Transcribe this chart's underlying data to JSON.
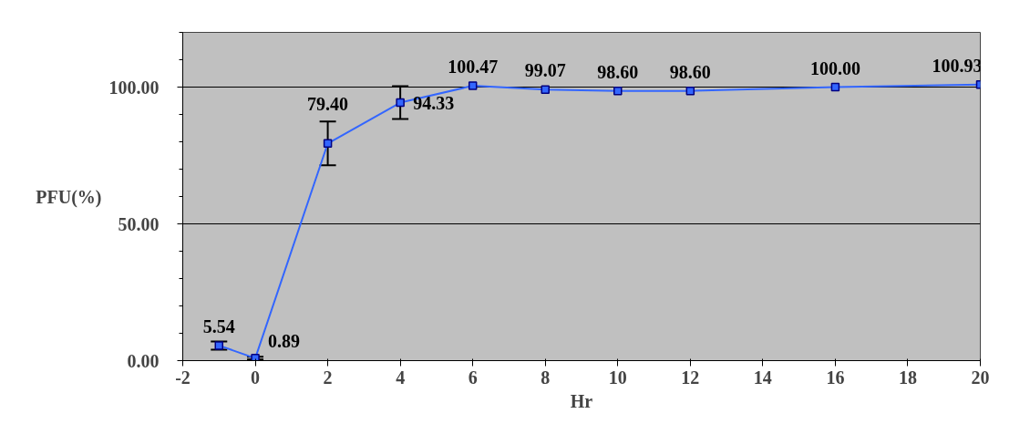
{
  "chart_data": {
    "type": "line",
    "xlabel": "Hr",
    "ylabel": "PFU(%)",
    "x": [
      -1,
      0,
      2,
      4,
      6,
      8,
      10,
      12,
      16,
      20
    ],
    "series": [
      {
        "color": "#3366ff",
        "values": [
          5.54,
          0.89,
          79.4,
          94.33,
          100.47,
          99.07,
          98.6,
          98.6,
          100.0,
          100.93
        ],
        "errors": [
          1.5,
          0.5,
          8,
          6,
          null,
          null,
          null,
          null,
          null,
          null
        ],
        "value_labels": [
          "5.54",
          "0.89",
          "79.40",
          "94.33",
          "100.47",
          "99.07",
          "98.60",
          "98.60",
          "100.00",
          "100.93"
        ]
      }
    ],
    "xlim": [
      -2,
      20
    ],
    "xticks": [
      -2,
      0,
      2,
      4,
      6,
      8,
      10,
      12,
      14,
      16,
      18,
      20
    ],
    "ylim": [
      0,
      120
    ],
    "yticks": [
      {
        "value": 0,
        "label": "0.00"
      },
      {
        "value": 50,
        "label": "50.00"
      },
      {
        "value": 100,
        "label": "100.00"
      }
    ],
    "grid": "y",
    "marker": "square",
    "line_style": "solid"
  }
}
